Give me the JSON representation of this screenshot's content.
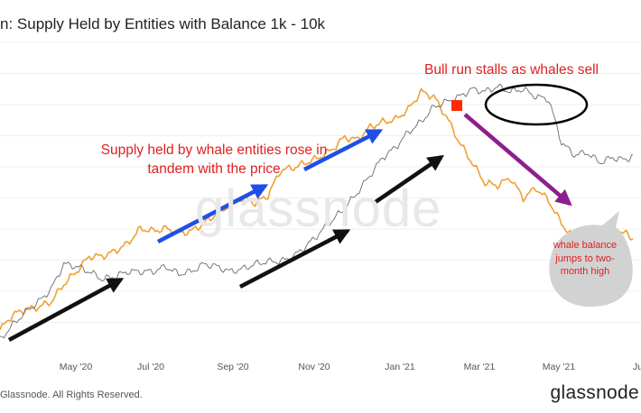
{
  "header": {
    "title": "n: Supply Held by Entities with Balance 1k - 10k"
  },
  "footer": {
    "copyright": "Glassnode. All Rights Reserved.",
    "brand": "glassnode"
  },
  "watermark": "glassnode",
  "annotations": {
    "whale_rise": "Supply held by whale entities rose in tandem with the price",
    "stall": "Bull run stalls as whales sell",
    "bubble": "whale balance jumps to two-month high"
  },
  "colors": {
    "price": "#f0a030",
    "supply": "#6a6a6a",
    "blue_arrow": "#1f4fe6",
    "black_arrow": "#111111",
    "purple_arrow": "#8e1e8e",
    "marker": "#ff2a00",
    "annotation_text": "#e02020"
  },
  "chart_data": {
    "type": "line",
    "x_ticks": [
      "May '20",
      "Jul '20",
      "Sep '20",
      "Nov '20",
      "Jan '21",
      "Mar '21",
      "May '21",
      "Jul"
    ],
    "series": [
      {
        "points": [
          [
            0,
            0.04
          ],
          [
            0.25,
            0.1
          ],
          [
            0.5,
            0.12
          ],
          [
            0.75,
            0.13
          ],
          [
            1,
            0.15
          ],
          [
            1.25,
            0.22
          ],
          [
            1.5,
            0.27
          ],
          [
            1.75,
            0.33
          ],
          [
            2,
            0.33
          ],
          [
            2.25,
            0.35
          ],
          [
            2.5,
            0.38
          ],
          [
            2.75,
            0.44
          ],
          [
            3,
            0.43
          ],
          [
            3.25,
            0.44
          ],
          [
            3.5,
            0.42
          ],
          [
            3.75,
            0.43
          ],
          [
            4,
            0.46
          ],
          [
            4.25,
            0.5
          ],
          [
            4.5,
            0.53
          ],
          [
            4.75,
            0.56
          ],
          [
            5,
            0.54
          ],
          [
            5.25,
            0.57
          ],
          [
            5.5,
            0.67
          ],
          [
            5.75,
            0.68
          ],
          [
            6,
            0.7
          ],
          [
            6.25,
            0.72
          ],
          [
            6.5,
            0.75
          ],
          [
            6.75,
            0.8
          ],
          [
            7,
            0.79
          ],
          [
            7.25,
            0.84
          ],
          [
            7.5,
            0.86
          ],
          [
            7.75,
            0.87
          ],
          [
            8,
            0.91
          ],
          [
            8.25,
            0.98
          ],
          [
            8.5,
            0.96
          ],
          [
            8.75,
            0.88
          ],
          [
            9,
            0.78
          ],
          [
            9.25,
            0.7
          ],
          [
            9.5,
            0.62
          ],
          [
            9.75,
            0.61
          ],
          [
            10,
            0.64
          ],
          [
            10.25,
            0.56
          ],
          [
            10.5,
            0.6
          ],
          [
            10.75,
            0.55
          ],
          [
            11,
            0.46
          ],
          [
            11.25,
            0.4
          ],
          [
            11.5,
            0.43
          ],
          [
            11.75,
            0.43
          ],
          [
            12,
            0.44
          ],
          [
            12.25,
            0.42
          ],
          [
            12.4,
            0.4
          ]
        ]
      },
      {
        "points": [
          [
            0,
            0.0
          ],
          [
            0.25,
            0.06
          ],
          [
            0.5,
            0.11
          ],
          [
            0.75,
            0.15
          ],
          [
            1,
            0.2
          ],
          [
            1.25,
            0.3
          ],
          [
            1.5,
            0.29
          ],
          [
            1.75,
            0.27
          ],
          [
            2,
            0.24
          ],
          [
            2.25,
            0.25
          ],
          [
            2.5,
            0.27
          ],
          [
            2.75,
            0.27
          ],
          [
            3,
            0.27
          ],
          [
            3.25,
            0.29
          ],
          [
            3.5,
            0.26
          ],
          [
            3.75,
            0.27
          ],
          [
            4,
            0.3
          ],
          [
            4.25,
            0.29
          ],
          [
            4.5,
            0.27
          ],
          [
            4.75,
            0.28
          ],
          [
            5,
            0.3
          ],
          [
            5.25,
            0.31
          ],
          [
            5.5,
            0.31
          ],
          [
            5.75,
            0.33
          ],
          [
            6,
            0.37
          ],
          [
            6.25,
            0.42
          ],
          [
            6.5,
            0.47
          ],
          [
            6.75,
            0.52
          ],
          [
            7,
            0.58
          ],
          [
            7.25,
            0.65
          ],
          [
            7.5,
            0.72
          ],
          [
            7.75,
            0.76
          ],
          [
            8,
            0.82
          ],
          [
            8.25,
            0.86
          ],
          [
            8.5,
            0.92
          ],
          [
            8.75,
            0.94
          ],
          [
            9,
            0.96
          ],
          [
            9.25,
            0.99
          ],
          [
            9.5,
            0.98
          ],
          [
            9.75,
            1.0
          ],
          [
            10,
            0.98
          ],
          [
            10.25,
            0.99
          ],
          [
            10.5,
            0.96
          ],
          [
            10.75,
            0.95
          ],
          [
            11,
            0.78
          ],
          [
            11.25,
            0.73
          ],
          [
            11.5,
            0.74
          ],
          [
            11.75,
            0.7
          ],
          [
            12,
            0.72
          ],
          [
            12.25,
            0.71
          ],
          [
            12.4,
            0.73
          ]
        ]
      }
    ]
  }
}
